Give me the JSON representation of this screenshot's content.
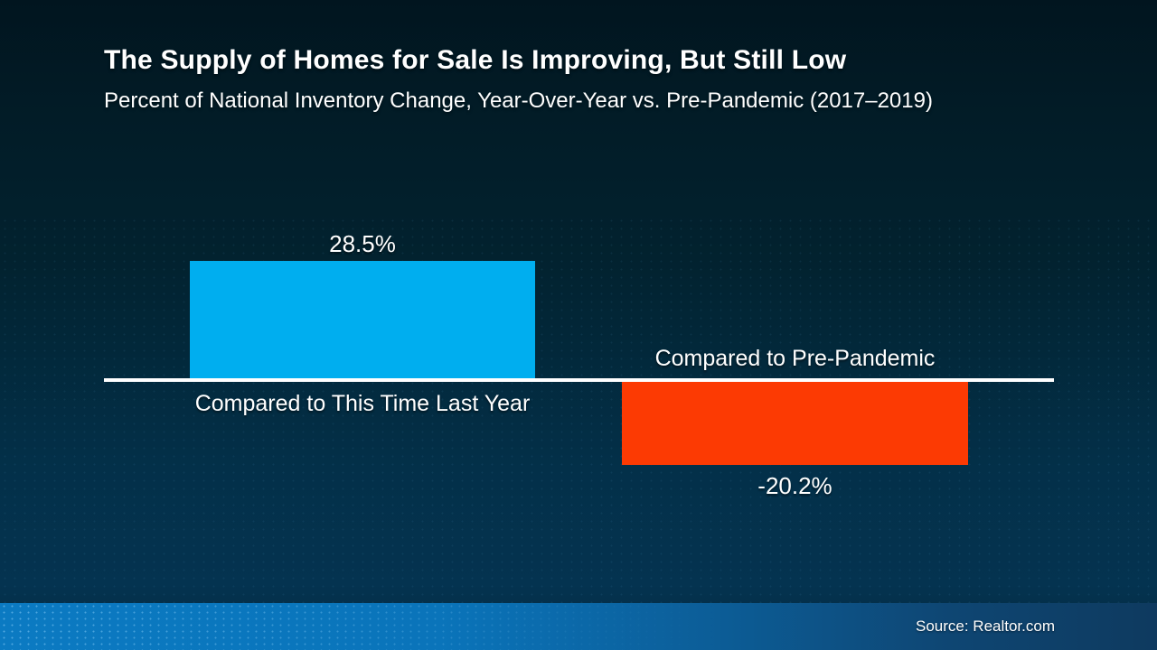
{
  "slide": {
    "title": "The Supply of Homes for Sale Is Improving, But Still Low",
    "subtitle": "Percent of National Inventory Change, Year-Over-Year vs. Pre-Pandemic (2017–2019)",
    "source": "Source: Realtor.com"
  },
  "colors": {
    "background_top": "#01151f",
    "background_bottom": "#03293e",
    "bar_positive": "#00AEEF",
    "bar_negative": "#FC3A03",
    "baseline": "#FFFFFF",
    "footer_gradient_left": "#0B7AC2",
    "footer_gradient_right": "#0E3A5F",
    "text": "#FFFFFF"
  },
  "chart_data": {
    "type": "bar",
    "title": "The Supply of Homes for Sale Is Improving, But Still Low",
    "subtitle": "Percent of National Inventory Change, Year-Over-Year vs. Pre-Pandemic (2017–2019)",
    "categories": [
      "Compared to This Time Last Year",
      "Compared to Pre-Pandemic"
    ],
    "values": [
      28.5,
      -20.2
    ],
    "value_labels": [
      "28.5%",
      "-20.2%"
    ],
    "series_colors": [
      "#00AEEF",
      "#FC3A03"
    ],
    "xlabel": "",
    "ylabel": "",
    "ylim": [
      -25,
      32
    ],
    "grid": false,
    "legend": false,
    "baseline_value": 0,
    "source": "Source: Realtor.com"
  }
}
